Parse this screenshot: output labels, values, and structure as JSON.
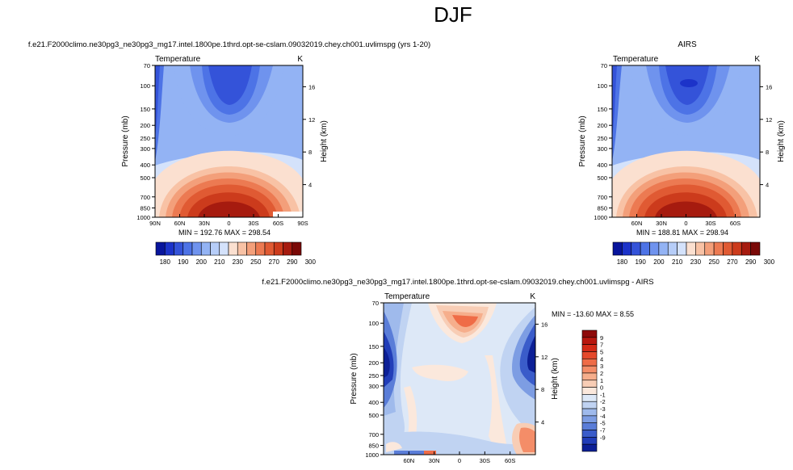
{
  "figure": {
    "title": "DJF"
  },
  "chart_data": [
    {
      "type": "heatmap",
      "title": "f.e21.F2000climo.ne30pg3_ne30pg3_mg17.intel.1800pe.1thrd.opt-se-cslam.09032019.chey.ch001.uvlimspg (yrs 1-20)",
      "left_label": "Temperature",
      "units": "K",
      "ylabel": "Pressure (mb)",
      "y2label": "Height (km)",
      "x_ticks": [
        "90N",
        "60N",
        "30N",
        "0",
        "30S",
        "60S",
        "90S"
      ],
      "y_ticks": [
        70,
        100,
        150,
        200,
        250,
        300,
        400,
        500,
        700,
        850,
        1000
      ],
      "y2_ticks": [
        16,
        12,
        8,
        4
      ],
      "stats": "MIN = 192.76   MAX = 298.54",
      "colorbar_labels": [
        "180",
        "190",
        "200",
        "210",
        "230",
        "250",
        "270",
        "290",
        "300"
      ],
      "colors": [
        "#08159c",
        "#1c33c9",
        "#3453d9",
        "#4d73e6",
        "#6f93ee",
        "#93b3f4",
        "#b6cdf8",
        "#d4e2fb",
        "#fbe0d0",
        "#f8c2a5",
        "#f39f7a",
        "#ec7a52",
        "#e05a33",
        "#cc3b1c",
        "#a61b0f",
        "#7a0907"
      ]
    },
    {
      "type": "heatmap",
      "title": "AIRS",
      "left_label": "Temperature",
      "units": "K",
      "ylabel": "Pressure (mb)",
      "y2label": "Height (km)",
      "x_ticks": [
        "60N",
        "30N",
        "0",
        "30S",
        "60S"
      ],
      "y_ticks": [
        70,
        100,
        150,
        200,
        250,
        300,
        400,
        500,
        700,
        850,
        1000
      ],
      "y2_ticks": [
        16,
        12,
        8,
        4
      ],
      "stats": "MIN = 188.81   MAX = 298.94",
      "colorbar_labels": [
        "180",
        "190",
        "200",
        "210",
        "230",
        "250",
        "270",
        "290",
        "300"
      ]
    },
    {
      "type": "heatmap",
      "title": "f.e21.F2000climo.ne30pg3_ne30pg3_mg17.intel.1800pe.1thrd.opt-se-cslam.09032019.chey.ch001.uvlimspg - AIRS",
      "left_label": "Temperature",
      "units": "K",
      "ylabel": "Pressure (mb)",
      "y2label": "Height (km)",
      "x_ticks": [
        "60N",
        "30N",
        "0",
        "30S",
        "60S"
      ],
      "y_ticks": [
        70,
        100,
        150,
        200,
        250,
        300,
        400,
        500,
        700,
        850,
        1000
      ],
      "y2_ticks": [
        16,
        12,
        8,
        4
      ],
      "stats": "MIN = -13.60  MAX =   8.55",
      "colorbar_labels": [
        "9",
        "7",
        "5",
        "4",
        "3",
        "2",
        "1",
        "0",
        "-1",
        "-2",
        "-3",
        "-4",
        "-5",
        "-7",
        "-9"
      ],
      "colors": [
        "#8e0a0a",
        "#b8170f",
        "#d42a17",
        "#e5492b",
        "#ef6c47",
        "#f48d68",
        "#f6ae8c",
        "#f8cdb5",
        "#fbe8dc",
        "#dde8f7",
        "#c0d3f2",
        "#9fbaec",
        "#7d9de3",
        "#5a7dd8",
        "#3a5cca",
        "#213db8",
        "#0c1f96"
      ]
    }
  ]
}
